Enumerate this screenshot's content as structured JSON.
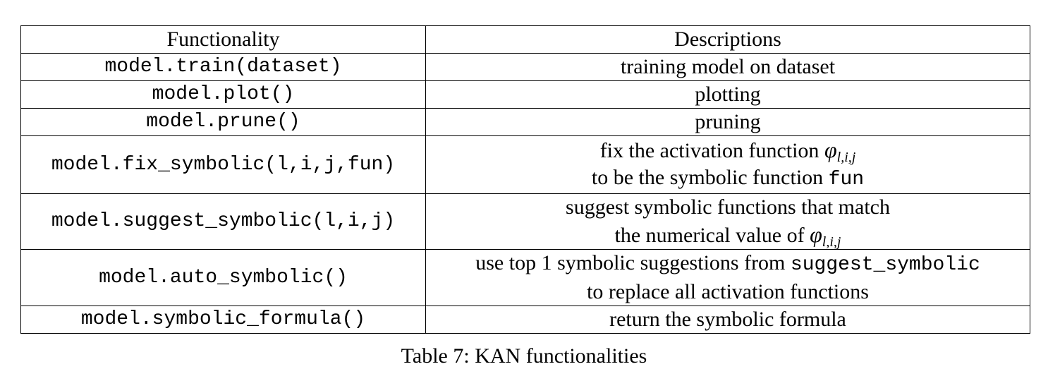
{
  "table": {
    "headers": [
      "Functionality",
      "Descriptions"
    ],
    "rows": [
      {
        "func": "model.train(dataset)",
        "desc": "training model on dataset"
      },
      {
        "func": "model.plot()",
        "desc": "plotting"
      },
      {
        "func": "model.prune()",
        "desc": "pruning"
      },
      {
        "func": "model.fix_symbolic(l,i,j,fun)",
        "desc_line1_text": "fix the activation function ",
        "desc_line1_phi": "φ",
        "desc_line1_sub": "l,i,j",
        "desc_line2_text": "to be the symbolic function ",
        "desc_line2_mono": "fun"
      },
      {
        "func": "model.suggest_symbolic(l,i,j)",
        "desc_line1_text": "suggest symbolic functions that match",
        "desc_line2_text": "the numerical value of ",
        "desc_line2_phi": "φ",
        "desc_line2_sub": "l,i,j"
      },
      {
        "func": "model.auto_symbolic()",
        "desc_line1_text": "use top 1 symbolic suggestions from ",
        "desc_line1_mono": "suggest_symbolic",
        "desc_line2_text": "to replace all activation functions"
      },
      {
        "func": "model.symbolic_formula()",
        "desc": "return the symbolic formula"
      }
    ]
  },
  "caption": "Table 7: KAN functionalities"
}
